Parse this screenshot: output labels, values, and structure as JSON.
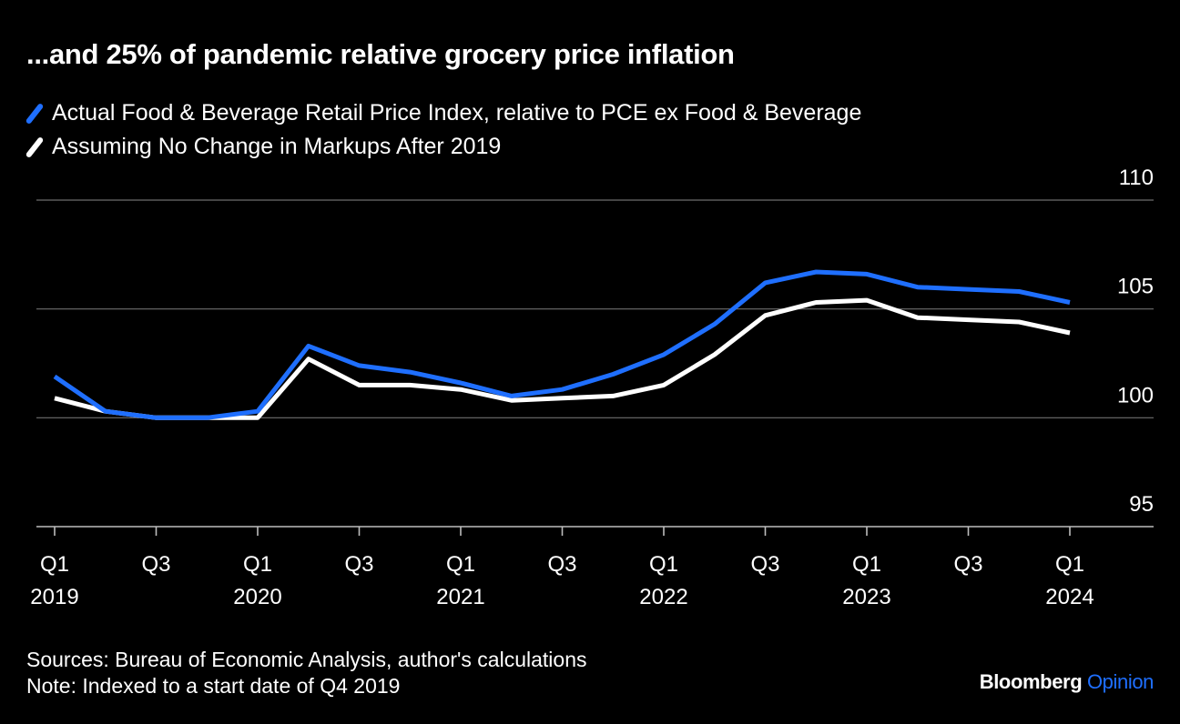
{
  "title": "...and 25% of pandemic relative grocery price inflation",
  "legend": [
    {
      "label": "Actual Food & Beverage Retail Price Index, relative to PCE ex Food & Beverage",
      "color": "#1f6fff"
    },
    {
      "label": "Assuming No Change in Markups After 2019",
      "color": "#ffffff"
    }
  ],
  "chart_data": {
    "type": "line",
    "x": [
      "2019 Q1",
      "2019 Q2",
      "2019 Q3",
      "2019 Q4",
      "2020 Q1",
      "2020 Q2",
      "2020 Q3",
      "2020 Q4",
      "2021 Q1",
      "2021 Q2",
      "2021 Q3",
      "2021 Q4",
      "2022 Q1",
      "2022 Q2",
      "2022 Q3",
      "2022 Q4",
      "2023 Q1",
      "2023 Q2",
      "2023 Q3",
      "2023 Q4",
      "2024 Q1"
    ],
    "series": [
      {
        "name": "Actual Food & Beverage Retail Price Index, relative to PCE ex Food & Beverage",
        "color": "#1f6fff",
        "values": [
          101.9,
          100.3,
          100.0,
          100.0,
          100.3,
          103.3,
          102.4,
          102.1,
          101.6,
          101.0,
          101.3,
          102.0,
          102.9,
          104.3,
          106.2,
          106.7,
          106.6,
          106.0,
          105.9,
          105.8,
          105.3
        ]
      },
      {
        "name": "Assuming No Change in Markups After 2019",
        "color": "#ffffff",
        "values": [
          100.9,
          100.3,
          100.0,
          100.0,
          100.0,
          102.7,
          101.5,
          101.5,
          101.3,
          100.8,
          100.9,
          101.0,
          101.5,
          102.9,
          104.7,
          105.3,
          105.4,
          104.6,
          104.5,
          104.4,
          103.9
        ]
      }
    ],
    "ylim": [
      95,
      110
    ],
    "yticks": [
      95,
      100,
      105,
      110
    ],
    "xticks": [
      {
        "quarter": "Q1",
        "year": "2019",
        "index": 0
      },
      {
        "quarter": "Q3",
        "year": "",
        "index": 2
      },
      {
        "quarter": "Q1",
        "year": "2020",
        "index": 4
      },
      {
        "quarter": "Q3",
        "year": "",
        "index": 6
      },
      {
        "quarter": "Q1",
        "year": "2021",
        "index": 8
      },
      {
        "quarter": "Q3",
        "year": "",
        "index": 10
      },
      {
        "quarter": "Q1",
        "year": "2022",
        "index": 12
      },
      {
        "quarter": "Q3",
        "year": "",
        "index": 14
      },
      {
        "quarter": "Q1",
        "year": "2023",
        "index": 16
      },
      {
        "quarter": "Q3",
        "year": "",
        "index": 18
      },
      {
        "quarter": "Q1",
        "year": "2024",
        "index": 20
      }
    ],
    "grid": true
  },
  "footer": {
    "sources": "Sources: Bureau of Economic Analysis, author's calculations",
    "note": "Note: Indexed to a start date of Q4 2019"
  },
  "brand": {
    "name": "Bloomberg",
    "product": "Opinion",
    "product_color": "#1f6fff"
  }
}
